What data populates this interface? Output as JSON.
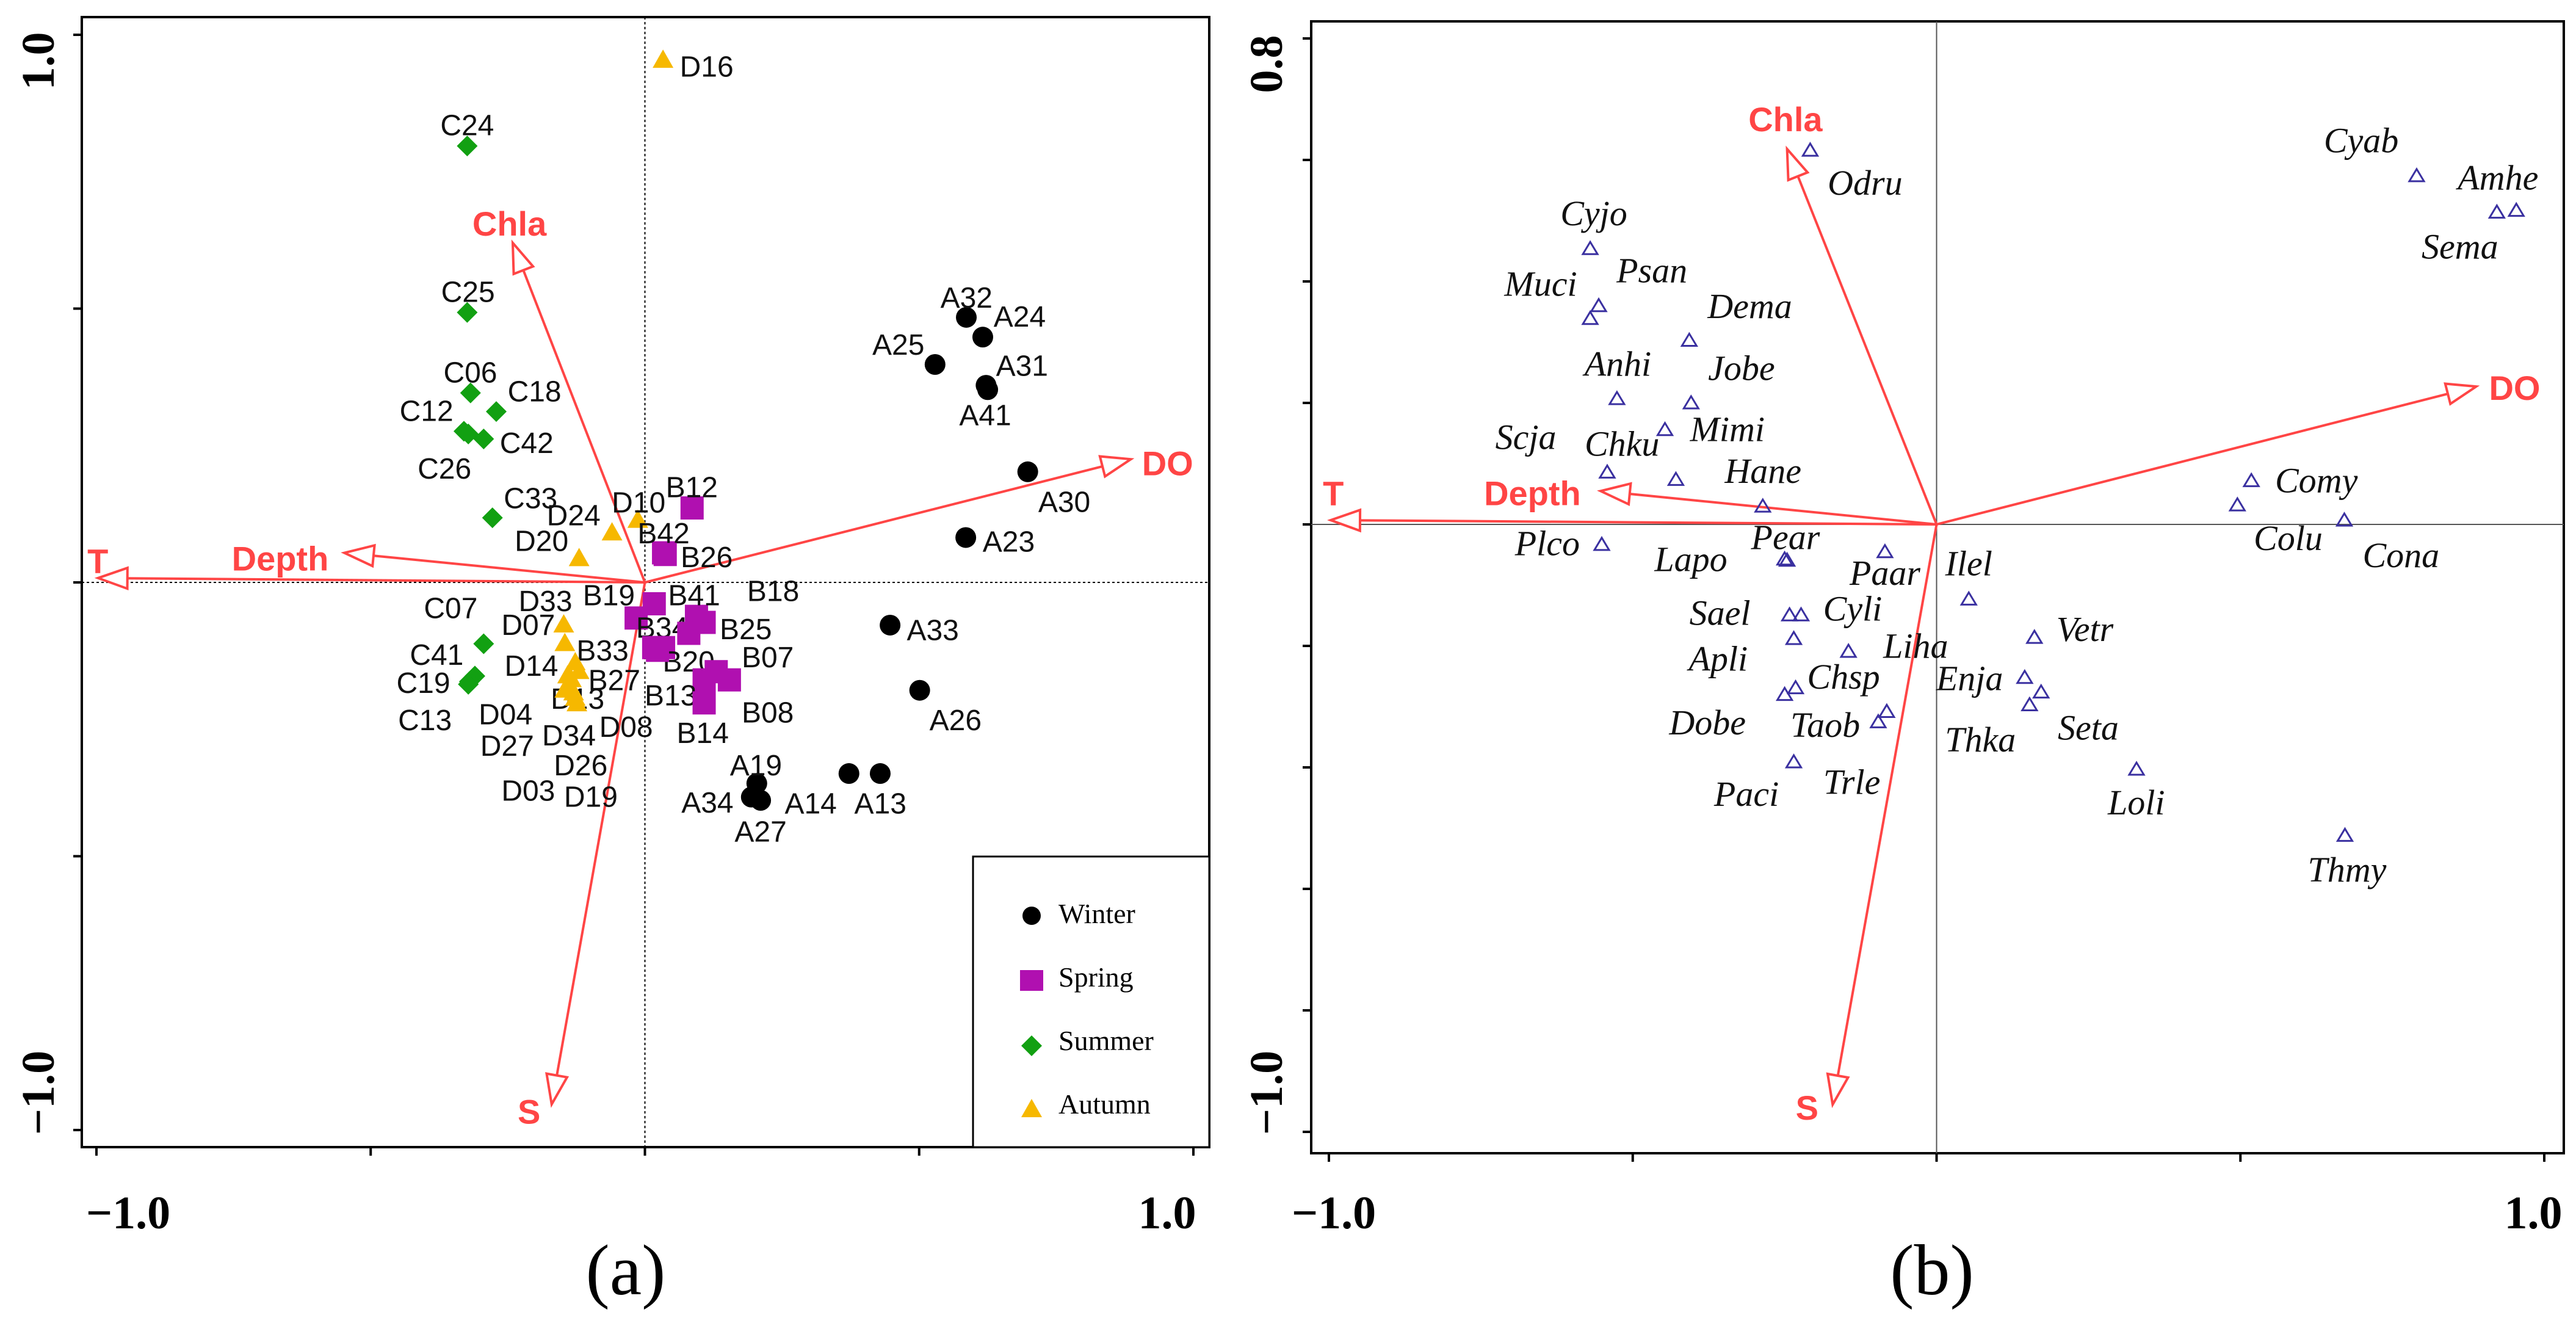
{
  "chart_data": [
    {
      "type": "scatter",
      "subtype": "biplot",
      "caption": "(a)",
      "xlim": [
        -1.02,
        1.03
      ],
      "ylim": [
        -1.03,
        1.05
      ],
      "x_tick_labels": [
        "−1.0",
        "1.0"
      ],
      "y_tick_labels": [
        "1.0",
        "−1.0"
      ],
      "reference_lines": "dotted at x=0 and y=0",
      "legend": {
        "placement": "bottom-right",
        "entries": [
          {
            "label": "Winter",
            "group": "A",
            "marker": "circle",
            "color": "#000000"
          },
          {
            "label": "Spring",
            "group": "B",
            "marker": "square",
            "color": "#b010b0"
          },
          {
            "label": "Summer",
            "group": "C",
            "marker": "diamond",
            "color": "#12a012"
          },
          {
            "label": "Autumn",
            "group": "D",
            "marker": "triangle",
            "color": "#f6b800"
          }
        ]
      },
      "arrows": [
        {
          "name": "Chla",
          "x": -0.241,
          "y": 0.62
        },
        {
          "name": "DO",
          "x": 0.886,
          "y": 0.225
        },
        {
          "name": "T",
          "x": -0.997,
          "y": 0.008
        },
        {
          "name": "Depth",
          "x": -0.548,
          "y": 0.054
        },
        {
          "name": "S",
          "x": -0.17,
          "y": -0.953
        }
      ],
      "arrow_color": "#ff4545",
      "points": [
        {
          "name": "D16",
          "group": "D",
          "x": 0.033,
          "y": 0.953
        },
        {
          "name": "C24",
          "group": "C",
          "x": -0.324,
          "y": 0.797
        },
        {
          "name": "C25",
          "group": "C",
          "x": -0.324,
          "y": 0.493
        },
        {
          "name": "C06",
          "group": "C",
          "x": -0.318,
          "y": 0.346
        },
        {
          "name": "C18",
          "group": "C",
          "x": -0.271,
          "y": 0.312
        },
        {
          "name": "C12",
          "group": "C",
          "x": -0.33,
          "y": 0.276
        },
        {
          "name": "C42",
          "group": "C",
          "x": -0.294,
          "y": 0.262
        },
        {
          "name": "C26",
          "group": "C",
          "x": -0.322,
          "y": 0.271
        },
        {
          "name": "C33",
          "group": "C",
          "x": -0.278,
          "y": 0.118
        },
        {
          "name": "D24",
          "group": "D",
          "x": -0.06,
          "y": 0.09
        },
        {
          "name": "D10",
          "group": "D",
          "x": -0.013,
          "y": 0.113
        },
        {
          "name": "D20",
          "group": "D",
          "x": -0.12,
          "y": 0.043
        },
        {
          "name": "B12",
          "group": "B",
          "x": 0.086,
          "y": 0.136
        },
        {
          "name": "B42",
          "group": "B",
          "x": 0.034,
          "y": 0.054
        },
        {
          "name": "B26",
          "group": "B",
          "x": 0.037,
          "y": 0.051
        },
        {
          "name": "B19",
          "group": "B",
          "x": 0.017,
          "y": -0.039
        },
        {
          "name": "B41",
          "group": "B",
          "x": 0.094,
          "y": -0.062
        },
        {
          "name": "B18",
          "group": "B",
          "x": 0.108,
          "y": -0.073
        },
        {
          "name": "B34",
          "group": "B",
          "x": -0.016,
          "y": -0.065
        },
        {
          "name": "B25",
          "group": "B",
          "x": 0.08,
          "y": -0.093
        },
        {
          "name": "B33",
          "group": "B",
          "x": 0.016,
          "y": -0.119
        },
        {
          "name": "B20",
          "group": "B",
          "x": 0.034,
          "y": -0.119
        },
        {
          "name": "B27",
          "group": "B",
          "x": 0.023,
          "y": -0.124
        },
        {
          "name": "B07",
          "group": "B",
          "x": 0.13,
          "y": -0.163
        },
        {
          "name": "B13",
          "group": "B",
          "x": 0.108,
          "y": -0.178
        },
        {
          "name": "B08",
          "group": "B",
          "x": 0.154,
          "y": -0.178
        },
        {
          "name": "B14",
          "group": "B",
          "x": 0.108,
          "y": -0.22
        },
        {
          "name": "D33",
          "group": "D",
          "x": -0.148,
          "y": -0.078
        },
        {
          "name": "D07",
          "group": "D",
          "x": -0.146,
          "y": -0.112
        },
        {
          "name": "D14",
          "group": "D",
          "x": -0.127,
          "y": -0.147
        },
        {
          "name": "D13",
          "group": "D",
          "x": -0.134,
          "y": -0.178
        },
        {
          "name": "D04",
          "group": "D",
          "x": -0.141,
          "y": -0.171
        },
        {
          "name": "D27",
          "group": "D",
          "x": -0.13,
          "y": -0.202
        },
        {
          "name": "D34",
          "group": "D",
          "x": -0.124,
          "y": -0.222
        },
        {
          "name": "D08",
          "group": "D",
          "x": -0.12,
          "y": -0.163
        },
        {
          "name": "D26",
          "group": "D",
          "x": -0.137,
          "y": -0.191
        },
        {
          "name": "D03",
          "group": "D",
          "x": -0.146,
          "y": -0.197
        },
        {
          "name": "D19",
          "group": "D",
          "x": -0.127,
          "y": -0.212
        },
        {
          "name": "C07",
          "group": "C",
          "x": -0.294,
          "y": -0.112
        },
        {
          "name": "C41",
          "group": "C",
          "x": -0.31,
          "y": -0.171
        },
        {
          "name": "C19",
          "group": "C",
          "x": -0.32,
          "y": -0.181
        },
        {
          "name": "C13",
          "group": "C",
          "x": -0.322,
          "y": -0.186
        },
        {
          "name": "A32",
          "group": "A",
          "x": 0.586,
          "y": 0.484
        },
        {
          "name": "A24",
          "group": "A",
          "x": 0.616,
          "y": 0.448
        },
        {
          "name": "A25",
          "group": "A",
          "x": 0.529,
          "y": 0.398
        },
        {
          "name": "A31",
          "group": "A",
          "x": 0.622,
          "y": 0.36
        },
        {
          "name": "A41",
          "group": "A",
          "x": 0.625,
          "y": 0.352
        },
        {
          "name": "A30",
          "group": "A",
          "x": 0.698,
          "y": 0.202
        },
        {
          "name": "A23",
          "group": "A",
          "x": 0.585,
          "y": 0.082
        },
        {
          "name": "A33",
          "group": "A",
          "x": 0.447,
          "y": -0.078
        },
        {
          "name": "A26",
          "group": "A",
          "x": 0.501,
          "y": -0.197
        },
        {
          "name": "A19",
          "group": "A",
          "x": 0.204,
          "y": -0.367
        },
        {
          "name": "A34",
          "group": "A",
          "x": 0.194,
          "y": -0.392
        },
        {
          "name": "A27",
          "group": "A",
          "x": 0.211,
          "y": -0.398
        },
        {
          "name": "A14",
          "group": "A",
          "x": 0.372,
          "y": -0.349
        },
        {
          "name": "A13",
          "group": "A",
          "x": 0.429,
          "y": -0.349
        }
      ]
    },
    {
      "type": "scatter",
      "subtype": "biplot",
      "caption": "(b)",
      "xlim": [
        -1.03,
        1.03
      ],
      "ylim": [
        -1.03,
        0.83
      ],
      "x_tick_labels": [
        "−1.0",
        "1.0"
      ],
      "y_tick_labels": [
        "0.8",
        "−1.0"
      ],
      "reference_lines": "solid thin at x=0 and y=0",
      "marker": "open-triangle",
      "marker_color": "#3a30a0",
      "arrows": [
        {
          "name": "Chla",
          "x": -0.246,
          "y": 0.618
        },
        {
          "name": "DO",
          "x": 0.888,
          "y": 0.227
        },
        {
          "name": "T",
          "x": -0.997,
          "y": 0.007
        },
        {
          "name": "Depth",
          "x": -0.553,
          "y": 0.055
        },
        {
          "name": "S",
          "x": -0.171,
          "y": -0.955
        }
      ],
      "arrow_color": "#ff4545",
      "points": [
        {
          "name": "Odru",
          "x": -0.208,
          "y": 0.615
        },
        {
          "name": "Cyjo",
          "x": -0.57,
          "y": 0.453
        },
        {
          "name": "Psan",
          "x": -0.556,
          "y": 0.359
        },
        {
          "name": "Muci",
          "x": -0.57,
          "y": 0.338
        },
        {
          "name": "Dema",
          "x": -0.407,
          "y": 0.302
        },
        {
          "name": "Anhi",
          "x": -0.526,
          "y": 0.206
        },
        {
          "name": "Jobe",
          "x": -0.404,
          "y": 0.199
        },
        {
          "name": "Mimi",
          "x": -0.447,
          "y": 0.155
        },
        {
          "name": "Scja",
          "x": -0.542,
          "y": 0.085
        },
        {
          "name": "Chku",
          "x": -0.429,
          "y": 0.073
        },
        {
          "name": "Hane",
          "x": -0.286,
          "y": 0.029
        },
        {
          "name": "Plco",
          "x": -0.551,
          "y": -0.034
        },
        {
          "name": "Lapo",
          "x": -0.246,
          "y": -0.06
        },
        {
          "name": "Pear",
          "x": -0.25,
          "y": -0.058
        },
        {
          "name": "Paar",
          "x": -0.085,
          "y": -0.046
        },
        {
          "name": "Ilel",
          "x": 0.053,
          "y": -0.124
        },
        {
          "name": "Cyli",
          "x": -0.223,
          "y": -0.15
        },
        {
          "name": "Sael",
          "x": -0.242,
          "y": -0.15
        },
        {
          "name": "Apli",
          "x": -0.235,
          "y": -0.189
        },
        {
          "name": "Liha",
          "x": -0.145,
          "y": -0.21
        },
        {
          "name": "Chsp",
          "x": -0.232,
          "y": -0.27
        },
        {
          "name": "Dobe",
          "x": -0.25,
          "y": -0.281
        },
        {
          "name": "Taob",
          "x": -0.082,
          "y": -0.309
        },
        {
          "name": "Trle",
          "x": -0.096,
          "y": -0.326
        },
        {
          "name": "Paci",
          "x": -0.235,
          "y": -0.392
        },
        {
          "name": "Vetr",
          "x": 0.161,
          "y": -0.187
        },
        {
          "name": "Enja",
          "x": 0.145,
          "y": -0.253
        },
        {
          "name": "Seta",
          "x": 0.172,
          "y": -0.277
        },
        {
          "name": "Thka",
          "x": 0.153,
          "y": -0.298
        },
        {
          "name": "Loli",
          "x": 0.329,
          "y": -0.404
        },
        {
          "name": "Thmy",
          "x": 0.672,
          "y": -0.513
        },
        {
          "name": "Comy",
          "x": 0.518,
          "y": 0.071
        },
        {
          "name": "Colu",
          "x": 0.495,
          "y": 0.031
        },
        {
          "name": "Cona",
          "x": 0.671,
          "y": 0.006
        },
        {
          "name": "Cyab",
          "x": 0.79,
          "y": 0.573
        },
        {
          "name": "Amhe",
          "x": 0.954,
          "y": 0.516
        },
        {
          "name": "Sema",
          "x": 0.922,
          "y": 0.513
        }
      ]
    }
  ]
}
